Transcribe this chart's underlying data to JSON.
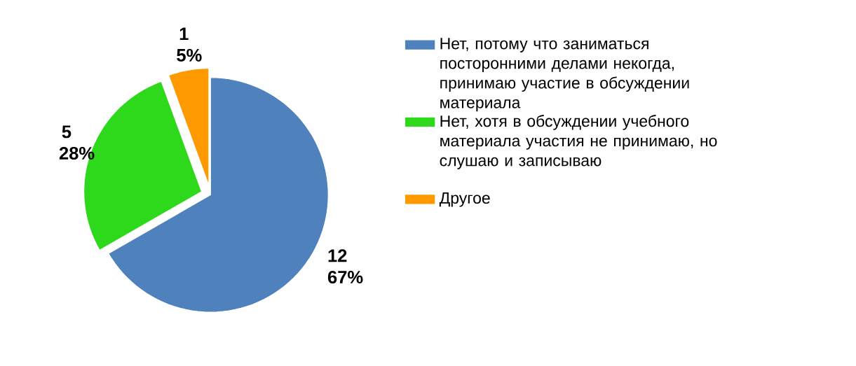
{
  "chart_data": {
    "type": "pie",
    "categories": [
      "Нет, потому что заниматься посторонними делами некогда, принимаю участие в обсуждении материала",
      "Нет, хотя в обсуждении учебного материала участия не принимаю, но слушаю и записываю",
      "Другое"
    ],
    "values": [
      12,
      5,
      1
    ],
    "colors": [
      "#4f81bd",
      "#2ed81b",
      "#ff9900"
    ],
    "value_labels": [
      "12 67%",
      "5 28%",
      "1 5%"
    ],
    "legend": "right"
  }
}
